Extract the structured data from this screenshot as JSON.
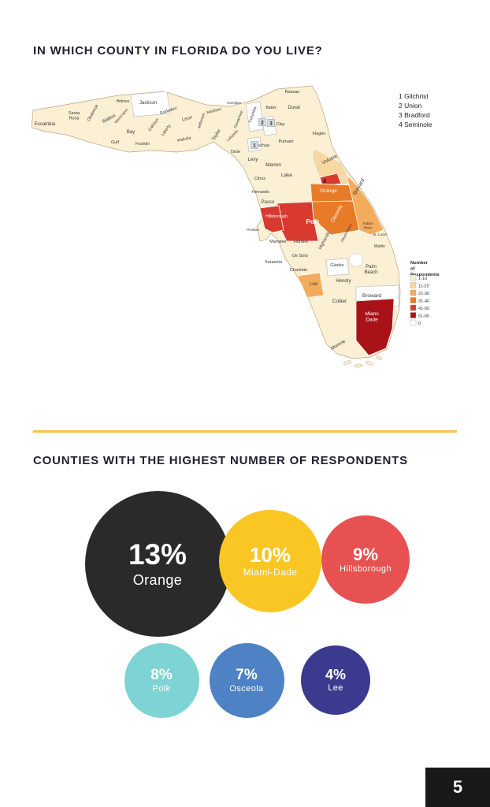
{
  "page": {
    "background": "#FFFFFF",
    "accent_color": "#F6C443",
    "page_number": "5"
  },
  "header": {
    "title": "IN WHICH COUNTY IN FLORIDA DO YOU LIVE?"
  },
  "section2": {
    "title": "COUNTIES WITH THE HIGHEST NUMBER OF RESPONDENTS"
  },
  "chart_data": [
    {
      "type": "choropleth",
      "region": "Florida counties",
      "title": "IN WHICH COUNTY IN FLORIDA DO YOU LIVE?",
      "legend_title": "Number of Respondents",
      "bins": [
        {
          "label": "1-10",
          "color": "#FBEFD4"
        },
        {
          "label": "11-20",
          "color": "#F7D8A2"
        },
        {
          "label": "21-30",
          "color": "#F3AC5C"
        },
        {
          "label": "31-40",
          "color": "#E87B28"
        },
        {
          "label": "41-50",
          "color": "#D93A30"
        },
        {
          "label": "51-60",
          "color": "#A81218"
        },
        {
          "label": "0",
          "color": "#FFFFFF"
        }
      ],
      "callouts": [
        {
          "num": "1",
          "name": "Gilchrist"
        },
        {
          "num": "2",
          "name": "Union"
        },
        {
          "num": "3",
          "name": "Bradford"
        },
        {
          "num": "4",
          "name": "Seminole"
        }
      ],
      "counties": [
        {
          "name": "Escambia",
          "bin": "1-10"
        },
        {
          "name": "Santa Rosa",
          "bin": "1-10",
          "lines": [
            "Santa",
            "Rosa"
          ]
        },
        {
          "name": "Okaloosa",
          "bin": "1-10"
        },
        {
          "name": "Walton",
          "bin": "1-10"
        },
        {
          "name": "Holmes",
          "bin": "1-10"
        },
        {
          "name": "Washington",
          "bin": "1-10"
        },
        {
          "name": "Jackson",
          "bin": "0"
        },
        {
          "name": "Bay",
          "bin": "1-10"
        },
        {
          "name": "Calhoun",
          "bin": "1-10"
        },
        {
          "name": "Gulf",
          "bin": "1-10"
        },
        {
          "name": "Liberty",
          "bin": "1-10"
        },
        {
          "name": "Franklin",
          "bin": "1-10"
        },
        {
          "name": "Gadsden",
          "bin": "1-10"
        },
        {
          "name": "Leon",
          "bin": "1-10"
        },
        {
          "name": "Wakulla",
          "bin": "1-10"
        },
        {
          "name": "Jefferson",
          "bin": "1-10"
        },
        {
          "name": "Madison",
          "bin": "1-10"
        },
        {
          "name": "Taylor",
          "bin": "1-10"
        },
        {
          "name": "Hamilton",
          "bin": "1-10"
        },
        {
          "name": "Suwannee",
          "bin": "1-10"
        },
        {
          "name": "Lafayette",
          "bin": "1-10"
        },
        {
          "name": "Dixie",
          "bin": "1-10"
        },
        {
          "name": "Columbia",
          "bin": "0"
        },
        {
          "name": "Baker",
          "bin": "1-10"
        },
        {
          "name": "Nassau",
          "bin": "1-10"
        },
        {
          "name": "Duval",
          "bin": "1-10"
        },
        {
          "name": "Clay",
          "bin": "1-10"
        },
        {
          "name": "Putnam",
          "bin": "1-10"
        },
        {
          "name": "Flagler",
          "bin": "1-10"
        },
        {
          "name": "Union",
          "bin": "0"
        },
        {
          "name": "Bradford",
          "bin": "0"
        },
        {
          "name": "Gilchrist",
          "bin": "0"
        },
        {
          "name": "Alachua",
          "bin": "1-10"
        },
        {
          "name": "Levy",
          "bin": "1-10"
        },
        {
          "name": "Marion",
          "bin": "1-10"
        },
        {
          "name": "Volusia",
          "bin": "11-20"
        },
        {
          "name": "Citrus",
          "bin": "1-10"
        },
        {
          "name": "Lake",
          "bin": "1-10"
        },
        {
          "name": "Seminole",
          "bin": "41-50"
        },
        {
          "name": "Orange",
          "bin": "31-40"
        },
        {
          "name": "Hernando",
          "bin": "1-10"
        },
        {
          "name": "Pasco",
          "bin": "1-10"
        },
        {
          "name": "Hillsborough",
          "bin": "41-50"
        },
        {
          "name": "Pinellas",
          "bin": "1-10"
        },
        {
          "name": "Polk",
          "bin": "41-50"
        },
        {
          "name": "Osceola",
          "bin": "31-40"
        },
        {
          "name": "Brevard",
          "bin": "21-30"
        },
        {
          "name": "Manatee",
          "bin": "1-10"
        },
        {
          "name": "Hardee",
          "bin": "1-10"
        },
        {
          "name": "Highlands",
          "bin": "1-10"
        },
        {
          "name": "Okeechobee",
          "bin": "1-10"
        },
        {
          "name": "Indian River",
          "bin": "1-10",
          "lines": [
            "Indian",
            "River"
          ]
        },
        {
          "name": "St. Lucie",
          "bin": "1-10"
        },
        {
          "name": "Martin",
          "bin": "1-10"
        },
        {
          "name": "Sarasota",
          "bin": "1-10"
        },
        {
          "name": "De Soto",
          "bin": "1-10"
        },
        {
          "name": "Charlotte",
          "bin": "1-10"
        },
        {
          "name": "Glades",
          "bin": "0"
        },
        {
          "name": "Palm Beach",
          "bin": "1-10",
          "lines": [
            "Palm",
            "Beach"
          ]
        },
        {
          "name": "Lee",
          "bin": "21-30"
        },
        {
          "name": "Hendry",
          "bin": "1-10"
        },
        {
          "name": "Broward",
          "bin": "0"
        },
        {
          "name": "Collier",
          "bin": "1-10"
        },
        {
          "name": "Miami-Dade",
          "bin": "51-60",
          "lines": [
            "Miami",
            "Dade"
          ]
        },
        {
          "name": "Monroe",
          "bin": "1-10"
        }
      ]
    },
    {
      "type": "bubble",
      "title": "COUNTIES WITH THE HIGHEST NUMBER OF RESPONDENTS",
      "categories": [
        "Orange",
        "Miami-Dade",
        "Hillsborough",
        "Polk",
        "Osceola",
        "Lee"
      ],
      "values": [
        13,
        10,
        9,
        8,
        7,
        4
      ],
      "unit": "%",
      "colors": [
        "#2B2A2A",
        "#F9C623",
        "#E85151",
        "#7ED4D4",
        "#4E82C4",
        "#3B3A8F"
      ],
      "text_color": "#FFFFFF"
    }
  ]
}
